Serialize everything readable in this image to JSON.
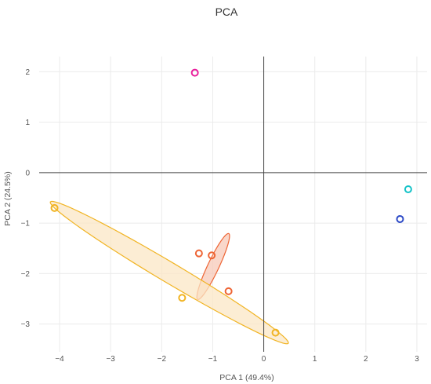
{
  "chart_data": {
    "type": "scatter",
    "title": "PCA",
    "xlabel": "PCA 1 (49.4%)",
    "ylabel": "PCA 2 (24.5%)",
    "xlim": [
      -4.4,
      3.2
    ],
    "ylim": [
      -3.55,
      2.3
    ],
    "xticks": [
      -4,
      -3,
      -2,
      -1,
      0,
      1,
      2,
      3
    ],
    "yticks": [
      -3,
      -2,
      -1,
      0,
      1,
      2
    ],
    "grid": true,
    "series": [
      {
        "color": "#e91e9c",
        "points": [
          {
            "x": -1.35,
            "y": 1.98
          }
        ]
      },
      {
        "color": "#17c3c8",
        "points": [
          {
            "x": 2.83,
            "y": -0.33
          }
        ]
      },
      {
        "color": "#2e4bc7",
        "points": [
          {
            "x": 2.67,
            "y": -0.92
          }
        ]
      },
      {
        "color": "#ee6535",
        "points": [
          {
            "x": -1.27,
            "y": -1.6
          },
          {
            "x": -1.02,
            "y": -1.64
          },
          {
            "x": -0.69,
            "y": -2.35
          }
        ],
        "ellipse": {
          "cx": -0.99,
          "cy": -1.86,
          "rx": 0.72,
          "ry": 0.11,
          "angle_deg": 65,
          "fill": "#f7c9b8"
        }
      },
      {
        "color": "#f1b423",
        "points": [
          {
            "x": -4.1,
            "y": -0.7
          },
          {
            "x": -1.6,
            "y": -2.48
          },
          {
            "x": 0.23,
            "y": -3.17
          }
        ],
        "ellipse": {
          "cx": -1.85,
          "cy": -1.98,
          "rx": 2.72,
          "ry": 0.2,
          "angle_deg": -31,
          "fill": "#fbe7c6"
        }
      }
    ]
  }
}
